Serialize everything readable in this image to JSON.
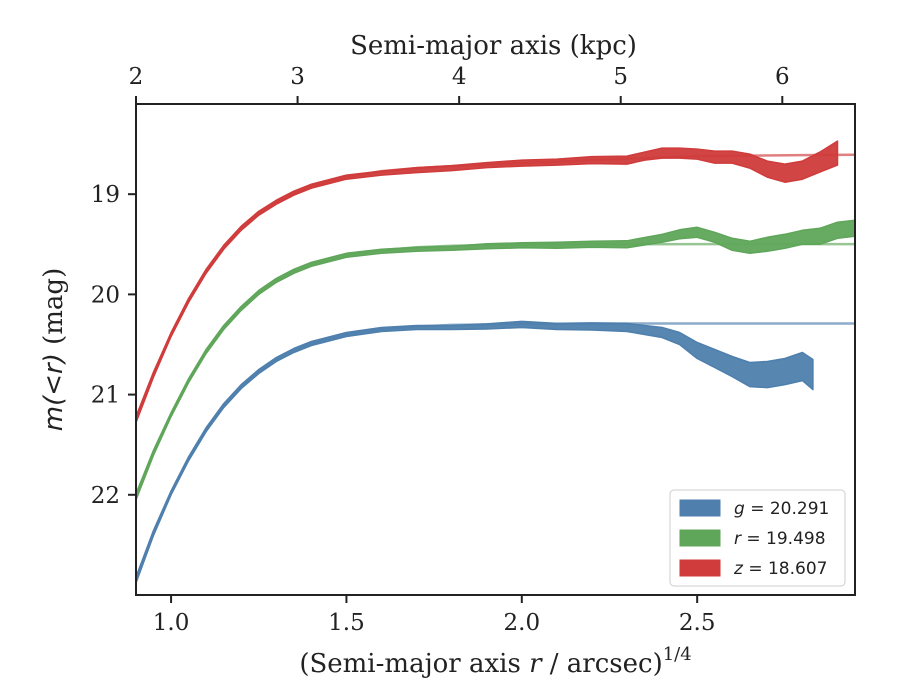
{
  "chart_data": {
    "type": "area",
    "xlabel": "(Semi-major axis r / arcsec)",
    "xlabel_var": "r",
    "xlabel_sup": "1/4",
    "x2label": "Semi-major axis (kpc)",
    "ylabel": "m(<r) (mag)",
    "xlim": [
      0.9,
      2.95
    ],
    "ylim": [
      23.0,
      18.1
    ],
    "x2lim": [
      2.0,
      6.45
    ],
    "y_inverted": true,
    "xticks": [
      {
        "value": 1.0,
        "label": "1.0"
      },
      {
        "value": 1.5,
        "label": "1.5"
      },
      {
        "value": 2.0,
        "label": "2.0"
      },
      {
        "value": 2.5,
        "label": "2.5"
      }
    ],
    "x2ticks": [
      {
        "value": 2,
        "label": "2"
      },
      {
        "value": 3,
        "label": "3"
      },
      {
        "value": 4,
        "label": "4"
      },
      {
        "value": 5,
        "label": "5"
      },
      {
        "value": 6,
        "label": "6"
      }
    ],
    "yticks": [
      {
        "value": 19,
        "label": "19"
      },
      {
        "value": 20,
        "label": "20"
      },
      {
        "value": 21,
        "label": "21"
      },
      {
        "value": 22,
        "label": "22"
      }
    ],
    "grid": false,
    "legend_position": "bottom-right",
    "series": [
      {
        "name": "g = 20.291",
        "legend_var": "g",
        "legend_value": "20.291",
        "color": "#4e7fad",
        "asymptote": 20.291,
        "fit_x": [
          0.9,
          0.95,
          1.0,
          1.05,
          1.1,
          1.15,
          1.2,
          1.25,
          1.3,
          1.35,
          1.4,
          1.5,
          1.6,
          1.7,
          1.8,
          2.0,
          2.2,
          2.5,
          2.8,
          2.95
        ],
        "fit_y": [
          22.85,
          22.38,
          21.98,
          21.64,
          21.35,
          21.11,
          20.92,
          20.77,
          20.65,
          20.56,
          20.49,
          20.4,
          20.35,
          20.32,
          20.305,
          20.295,
          20.292,
          20.291,
          20.291,
          20.291
        ],
        "band_x": [
          0.9,
          0.95,
          1.0,
          1.05,
          1.1,
          1.15,
          1.2,
          1.25,
          1.3,
          1.35,
          1.4,
          1.5,
          1.6,
          1.7,
          1.8,
          1.9,
          2.0,
          2.1,
          2.2,
          2.3,
          2.4,
          2.45,
          2.5,
          2.55,
          2.6,
          2.65,
          2.7,
          2.75,
          2.8,
          2.83
        ],
        "band_y": [
          22.85,
          22.38,
          21.98,
          21.64,
          21.35,
          21.11,
          20.92,
          20.77,
          20.65,
          20.56,
          20.49,
          20.4,
          20.35,
          20.33,
          20.33,
          20.32,
          20.3,
          20.32,
          20.32,
          20.33,
          20.38,
          20.44,
          20.56,
          20.64,
          20.72,
          20.8,
          20.8,
          20.77,
          20.72,
          20.8
        ],
        "band_w": [
          0.03,
          0.025,
          0.02,
          0.02,
          0.02,
          0.02,
          0.02,
          0.02,
          0.02,
          0.02,
          0.02,
          0.02,
          0.02,
          0.02,
          0.02,
          0.025,
          0.03,
          0.03,
          0.035,
          0.04,
          0.05,
          0.06,
          0.08,
          0.09,
          0.1,
          0.12,
          0.13,
          0.13,
          0.14,
          0.15
        ]
      },
      {
        "name": "r = 19.498",
        "legend_var": "r",
        "legend_value": "19.498",
        "color": "#5fa65a",
        "asymptote": 19.498,
        "fit_x": [
          0.9,
          0.95,
          1.0,
          1.05,
          1.1,
          1.15,
          1.2,
          1.25,
          1.3,
          1.35,
          1.4,
          1.5,
          1.6,
          1.7,
          1.8,
          2.0,
          2.2,
          2.5,
          2.8,
          2.95
        ],
        "fit_y": [
          22.02,
          21.58,
          21.2,
          20.86,
          20.57,
          20.33,
          20.14,
          19.98,
          19.86,
          19.77,
          19.7,
          19.61,
          19.56,
          19.53,
          19.515,
          19.503,
          19.5,
          19.498,
          19.498,
          19.498
        ],
        "band_x": [
          0.9,
          0.95,
          1.0,
          1.05,
          1.1,
          1.15,
          1.2,
          1.25,
          1.3,
          1.35,
          1.4,
          1.5,
          1.6,
          1.7,
          1.8,
          1.9,
          2.0,
          2.1,
          2.2,
          2.3,
          2.4,
          2.45,
          2.5,
          2.55,
          2.6,
          2.65,
          2.7,
          2.75,
          2.8,
          2.85,
          2.9,
          2.95
        ],
        "band_y": [
          22.02,
          21.58,
          21.2,
          20.86,
          20.57,
          20.33,
          20.14,
          19.98,
          19.86,
          19.77,
          19.7,
          19.61,
          19.57,
          19.55,
          19.54,
          19.52,
          19.51,
          19.51,
          19.5,
          19.5,
          19.44,
          19.4,
          19.38,
          19.43,
          19.5,
          19.53,
          19.5,
          19.47,
          19.43,
          19.42,
          19.36,
          19.34
        ],
        "band_w": [
          0.03,
          0.025,
          0.02,
          0.02,
          0.02,
          0.02,
          0.02,
          0.02,
          0.02,
          0.02,
          0.02,
          0.02,
          0.02,
          0.02,
          0.02,
          0.025,
          0.025,
          0.03,
          0.03,
          0.035,
          0.04,
          0.045,
          0.05,
          0.05,
          0.06,
          0.06,
          0.07,
          0.07,
          0.07,
          0.08,
          0.08,
          0.08
        ]
      },
      {
        "name": "z = 18.607",
        "legend_var": "z",
        "legend_value": "18.607",
        "color": "#d03b3b",
        "asymptote": 18.607,
        "fit_x": [
          0.9,
          0.95,
          1.0,
          1.05,
          1.1,
          1.15,
          1.2,
          1.25,
          1.3,
          1.35,
          1.4,
          1.5,
          1.6,
          1.7,
          1.8,
          2.0,
          2.2,
          2.5,
          2.8,
          2.95
        ],
        "fit_y": [
          21.25,
          20.8,
          20.4,
          20.06,
          19.77,
          19.53,
          19.34,
          19.19,
          19.08,
          18.99,
          18.92,
          18.83,
          18.77,
          18.74,
          18.72,
          18.69,
          18.66,
          18.62,
          18.61,
          18.607
        ],
        "band_x": [
          0.9,
          0.95,
          1.0,
          1.05,
          1.1,
          1.15,
          1.2,
          1.25,
          1.3,
          1.35,
          1.4,
          1.5,
          1.6,
          1.7,
          1.8,
          1.9,
          2.0,
          2.1,
          2.2,
          2.3,
          2.35,
          2.4,
          2.45,
          2.5,
          2.55,
          2.6,
          2.65,
          2.7,
          2.75,
          2.8,
          2.85,
          2.9
        ],
        "band_y": [
          21.25,
          20.8,
          20.4,
          20.06,
          19.77,
          19.53,
          19.34,
          19.19,
          19.08,
          18.99,
          18.92,
          18.83,
          18.79,
          18.76,
          18.74,
          18.71,
          18.69,
          18.68,
          18.66,
          18.66,
          18.62,
          18.59,
          18.59,
          18.6,
          18.63,
          18.63,
          18.67,
          18.75,
          18.79,
          18.76,
          18.68,
          18.59
        ],
        "band_w": [
          0.03,
          0.025,
          0.02,
          0.02,
          0.02,
          0.02,
          0.02,
          0.02,
          0.02,
          0.02,
          0.02,
          0.02,
          0.02,
          0.025,
          0.025,
          0.025,
          0.03,
          0.03,
          0.035,
          0.04,
          0.04,
          0.05,
          0.05,
          0.05,
          0.06,
          0.06,
          0.07,
          0.08,
          0.09,
          0.09,
          0.1,
          0.12
        ]
      }
    ]
  }
}
